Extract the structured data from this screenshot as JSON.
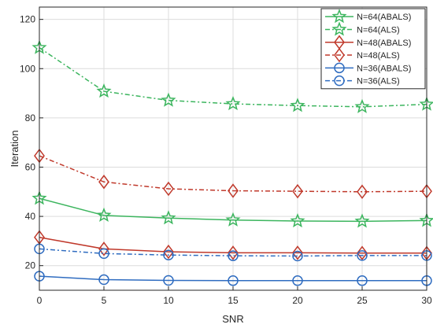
{
  "chart_data": {
    "type": "line",
    "xlabel": "SNR",
    "ylabel": "Iteration",
    "x": [
      0,
      5,
      10,
      15,
      20,
      25,
      30
    ],
    "xlim": [
      0,
      30
    ],
    "ylim": [
      10,
      125
    ],
    "xticks": [
      0,
      5,
      10,
      15,
      20,
      25,
      30
    ],
    "yticks": [
      20,
      40,
      60,
      80,
      100,
      120
    ],
    "grid": true,
    "legend_position": "top-right",
    "series": [
      {
        "name": "N=64(ABALS)",
        "color": "#3cb55e",
        "marker": "star",
        "dash": "solid",
        "values": [
          47.3,
          40.4,
          39.3,
          38.5,
          38.1,
          38.0,
          38.3
        ]
      },
      {
        "name": "N=64(ALS)",
        "color": "#3cb55e",
        "marker": "star",
        "dash": "dashdot",
        "values": [
          108.5,
          90.8,
          87.1,
          85.7,
          85.0,
          84.5,
          85.5
        ]
      },
      {
        "name": "N=48(ABALS)",
        "color": "#c0392b",
        "marker": "diamond",
        "dash": "solid",
        "values": [
          31.5,
          26.8,
          25.6,
          25.2,
          25.2,
          25.1,
          25.1
        ]
      },
      {
        "name": "N=48(ALS)",
        "color": "#c0392b",
        "marker": "diamond",
        "dash": "dashdot",
        "values": [
          64.6,
          54.0,
          51.2,
          50.4,
          50.2,
          50.0,
          50.2
        ]
      },
      {
        "name": "N=36(ABALS)",
        "color": "#2f6cc0",
        "marker": "circle",
        "dash": "solid",
        "values": [
          15.7,
          14.3,
          14.0,
          13.9,
          13.9,
          13.9,
          13.9
        ]
      },
      {
        "name": "N=36(ALS)",
        "color": "#2f6cc0",
        "marker": "circle",
        "dash": "dashdot",
        "values": [
          26.8,
          24.9,
          24.3,
          24.0,
          23.9,
          24.1,
          24.1
        ]
      }
    ]
  }
}
